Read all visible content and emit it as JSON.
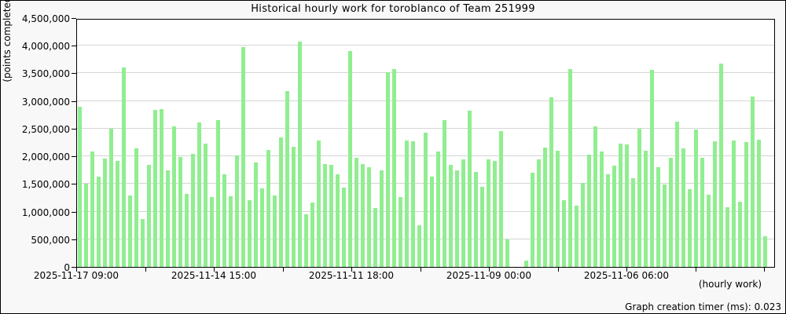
{
  "chart_data": {
    "type": "bar",
    "title": "Historical hourly work for toroblanco of Team 251999",
    "ylabel": "(points completed per hour)",
    "axis_note": "(hourly work)",
    "grid": true,
    "legend": null,
    "bar_color": "#90ee90",
    "plot_bg": "#ffffff",
    "frame_bg": "#f8f8f8",
    "gridline_color": "#d5d5d5",
    "ylim": [
      0,
      4500000
    ],
    "y_tick_step": 500000,
    "y_tick_labels": [
      "0",
      "500,000",
      "1,000,000",
      "1,500,000",
      "2,000,000",
      "2,500,000",
      "3,000,000",
      "3,500,000",
      "4,000,000",
      "4,500,000"
    ],
    "x_tick_count": 11,
    "x_labeled_ticks": [
      0,
      2,
      4,
      6,
      8
    ],
    "x_tick_labels": [
      "2025-11-17 09:00",
      "2025-11-14 15:00",
      "2025-11-11 18:00",
      "2025-11-09 00:00",
      "2025-11-06 06:00"
    ],
    "values": [
      2900000,
      1500000,
      2090000,
      1630000,
      1960000,
      2500000,
      1920000,
      3610000,
      1290000,
      2140000,
      870000,
      1850000,
      2840000,
      2860000,
      1750000,
      2540000,
      1990000,
      1320000,
      2040000,
      2610000,
      2230000,
      1260000,
      2660000,
      1680000,
      1280000,
      2020000,
      3970000,
      1210000,
      1890000,
      1420000,
      2120000,
      1290000,
      2340000,
      3180000,
      2170000,
      4070000,
      950000,
      1160000,
      2280000,
      1860000,
      1840000,
      1680000,
      1430000,
      3910000,
      1980000,
      1860000,
      1800000,
      1070000,
      1740000,
      3520000,
      3580000,
      1260000,
      2290000,
      2270000,
      750000,
      2430000,
      1630000,
      2080000,
      2650000,
      1850000,
      1750000,
      1950000,
      2820000,
      1720000,
      1450000,
      1950000,
      1920000,
      2460000,
      500000,
      0,
      0,
      120000,
      1710000,
      1950000,
      2160000,
      3070000,
      2100000,
      1200000,
      3580000,
      1110000,
      1520000,
      2030000,
      2540000,
      2090000,
      1680000,
      1830000,
      2230000,
      2220000,
      1610000,
      2500000,
      2100000,
      3570000,
      1800000,
      1490000,
      1980000,
      2630000,
      2150000,
      1410000,
      2490000,
      1980000,
      1310000,
      2270000,
      3670000,
      1080000,
      2290000,
      1180000,
      2250000,
      3080000,
      2300000,
      550000,
      0
    ]
  },
  "footer": {
    "timer_label": "Graph creation timer (ms):",
    "timer_value": "0.023"
  }
}
